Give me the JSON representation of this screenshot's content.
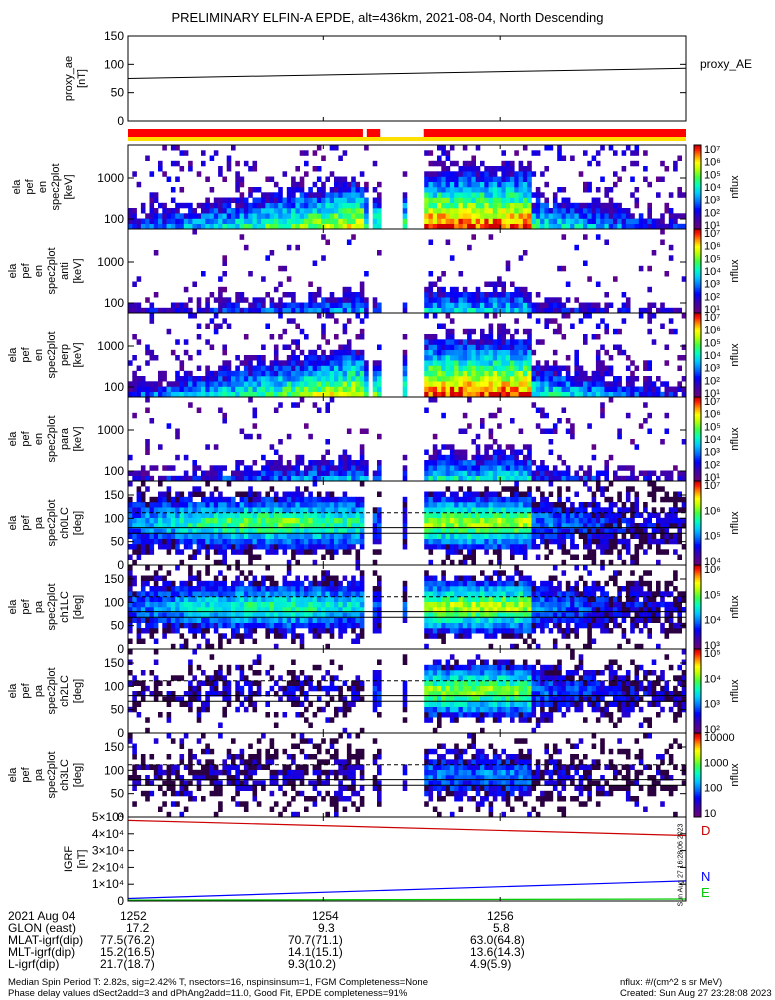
{
  "title": "PRELIMINARY ELFIN-A EPDE, alt=436km, 2021-08-04, North Descending",
  "colors": {
    "flag_red": "#ff0000",
    "flag_yellow": "#ffe000",
    "bx": "#cc0000",
    "by": "#0000ff",
    "bz": "#00cc00",
    "background": "#ffffff"
  },
  "panels": [
    {
      "id": "proxy_ae",
      "ylabel": [
        "proxy_ae",
        "[nT]"
      ],
      "yticks": [
        "150",
        "100",
        "50",
        "0"
      ],
      "right_label": "proxy_AE"
    },
    {
      "id": "en1",
      "ylabel": [
        "ela",
        "pef",
        "en",
        "spec2plot",
        "[keV]"
      ],
      "yticks": [
        "1000",
        "100"
      ],
      "cbar_ticks": [
        "10⁷",
        "10⁶",
        "10⁵",
        "10⁴",
        "10³",
        "10²",
        "10¹"
      ],
      "cbar_label": "nflux"
    },
    {
      "id": "en2",
      "ylabel": [
        "ela",
        "pef",
        "en",
        "spec2plot",
        "anti",
        "[keV]"
      ],
      "yticks": [
        "1000",
        "100"
      ],
      "cbar_ticks": [
        "10⁷",
        "10⁶",
        "10⁵",
        "10⁴",
        "10³",
        "10²",
        "10¹"
      ],
      "cbar_label": "nflux"
    },
    {
      "id": "en3",
      "ylabel": [
        "ela",
        "pef",
        "en",
        "spec2plot",
        "perp",
        "[keV]"
      ],
      "yticks": [
        "1000",
        "100"
      ],
      "cbar_ticks": [
        "10⁷",
        "10⁶",
        "10⁵",
        "10⁴",
        "10³",
        "10²",
        "10¹"
      ],
      "cbar_label": "nflux"
    },
    {
      "id": "en4",
      "ylabel": [
        "ela",
        "pef",
        "en",
        "spec2plot",
        "para",
        "[keV]"
      ],
      "yticks": [
        "1000",
        "100"
      ],
      "cbar_ticks": [
        "10⁷",
        "10⁶",
        "10⁵",
        "10⁴",
        "10³",
        "10²",
        "10¹"
      ],
      "cbar_label": "nflux"
    },
    {
      "id": "pa0",
      "ylabel": [
        "ela",
        "pef",
        "pa",
        "spec2plot",
        "ch0LC",
        "[deg]"
      ],
      "yticks": [
        "150",
        "100",
        "50",
        "0"
      ],
      "cbar_ticks": [
        "10⁷",
        "10⁶",
        "10⁵",
        "10⁴"
      ],
      "cbar_label": "nflux"
    },
    {
      "id": "pa1",
      "ylabel": [
        "ela",
        "pef",
        "pa",
        "spec2plot",
        "ch1LC",
        "[deg]"
      ],
      "yticks": [
        "150",
        "100",
        "50",
        "0"
      ],
      "cbar_ticks": [
        "10⁶",
        "10⁵",
        "10⁴",
        "10³"
      ],
      "cbar_label": "nflux"
    },
    {
      "id": "pa2",
      "ylabel": [
        "ela",
        "pef",
        "pa",
        "spec2plot",
        "ch2LC",
        "[deg]"
      ],
      "yticks": [
        "150",
        "100",
        "50",
        "0"
      ],
      "cbar_ticks": [
        "10⁵",
        "10⁴",
        "10³",
        "10²"
      ],
      "cbar_label": "nflux"
    },
    {
      "id": "pa3",
      "ylabel": [
        "ela",
        "pef",
        "pa",
        "spec2plot",
        "ch3LC",
        "[deg]"
      ],
      "yticks": [
        "150",
        "100",
        "50",
        "0"
      ],
      "cbar_ticks": [
        "10000",
        "1000",
        "100",
        "10"
      ],
      "cbar_label": "nflux"
    },
    {
      "id": "igrf",
      "ylabel": [
        "IGRF",
        "[nT]"
      ],
      "yticks": [
        "5×10⁴",
        "4×10⁴",
        "3×10⁴",
        "2×10⁴",
        "1×10⁴",
        "0"
      ],
      "legend": [
        "D",
        "N",
        "E"
      ]
    }
  ],
  "side_stamp": "Sun Aug 27 16:28:06 2023",
  "footer_rows": [
    {
      "label": "2021 Aug 04",
      "v1": "1252",
      "v2": "1254",
      "v3": "1256"
    },
    {
      "label": "GLON (east)",
      "v1": "17.2",
      "v2": "9.3",
      "v3": "5.8"
    },
    {
      "label": "MLAT-igrf(dip)",
      "v1": "77.5(76.2)",
      "v2": "70.7(71.1)",
      "v3": "63.0(64.8)"
    },
    {
      "label": "MLT-igrf(dip)",
      "v1": "15.2(16.5)",
      "v2": "14.1(15.1)",
      "v3": "13.6(14.3)"
    },
    {
      "label": "L-igrf(dip)",
      "v1": "21.7(18.7)",
      "v2": "9.3(10.2)",
      "v3": "4.9(5.9)"
    }
  ],
  "footnote1": "Median Spin Period T: 2.82s, sig=2.42% T, nsectors=16, nspinsinsum=1, FGM Completeness=None",
  "footnote2": "Phase delay values dSect2add=3 and dPhAng2add=11.0, Good Fit, EPDE completeness=91%",
  "units_note": "nflux: #/(cm^2 s sr MeV)",
  "created_note": "Created: Sun Aug 27 23:28:08 2023",
  "chart_data": {
    "type": "heatmap",
    "title": "PRELIMINARY ELFIN-A EPDE, alt=436km, 2021-08-04, North Descending",
    "x_ticks": [
      "1252",
      "1254",
      "1256"
    ],
    "proxy_ae": {
      "ylabel": "proxy_ae [nT]",
      "ylim": [
        0,
        150
      ],
      "start": 75,
      "end": 93
    },
    "energy_ylim_keV": [
      60,
      7000
    ],
    "pitch_angle_ylim_deg": [
      0,
      180
    ],
    "pitch_angle_reference_lines_deg": [
      68,
      80,
      112
    ],
    "igrf": {
      "ylabel": "IGRF [nT]",
      "ylim": [
        0,
        50000
      ],
      "series": [
        {
          "name": "D",
          "start": 48000,
          "end": 39000
        },
        {
          "name": "N",
          "start": 1500,
          "end": 12000
        },
        {
          "name": "E",
          "start": 500,
          "end": 1200
        }
      ]
    }
  }
}
